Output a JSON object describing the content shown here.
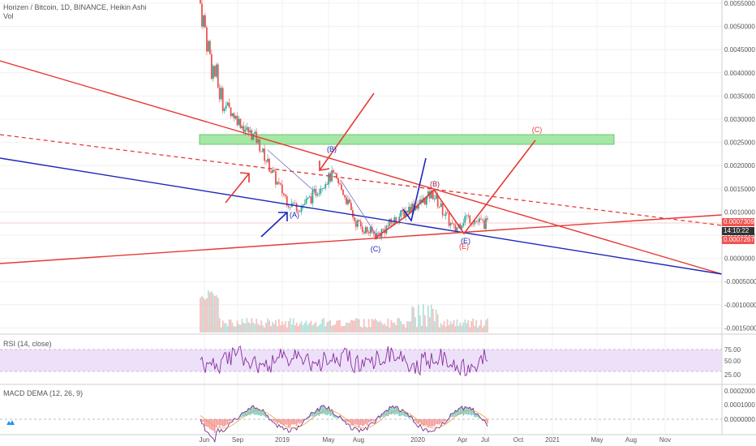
{
  "header": {
    "symbol_line": "Horizen / Bitcoin, 1D, BINANCE, Heikin Ashi",
    "vol_label": "Vol"
  },
  "colors": {
    "red_line": "#e53935",
    "blue_line": "#1a27b8",
    "green_zone": "#9ce69c",
    "candle_up": "#26a69a",
    "candle_down": "#ef5350",
    "rsi_line": "#8a2ea0",
    "rsi_band": "#e8d9f7",
    "macd_line": "#7b2d8e",
    "price_tag_top": "#ef5350",
    "price_tag_mid": "#333333",
    "price_tag_bot": "#ef5350"
  },
  "price_axis": {
    "ticks": [
      "0.0055000",
      "0.0050000",
      "0.0045000",
      "0.0040000",
      "0.0035000",
      "0.0030000",
      "0.0025000",
      "0.0020000",
      "0.0015000",
      "0.0010000",
      "0.0005000",
      "0.0000000",
      "-0.0005000",
      "-0.0010000",
      "-0.0015000"
    ],
    "current_price": "0.0007309",
    "countdown": "14:10:22",
    "low_price": "0.0007267"
  },
  "time_axis": {
    "labels": [
      "Jun",
      "Sep",
      "2019",
      "May",
      "Aug",
      "2020",
      "Apr",
      "Jul",
      "Oct",
      "2021",
      "May",
      "Aug",
      "Nov"
    ]
  },
  "wave_labels": [
    "(A)",
    "(B)",
    "(C)",
    "(B)",
    "(E)",
    "(E)",
    "(C)"
  ],
  "rsi": {
    "title": "RSI (14, close)",
    "ticks": [
      "75.00",
      "50.00",
      "25.00"
    ]
  },
  "macd": {
    "title": "MACD DEMA (12, 26, 9)",
    "ticks": [
      "0.0002000",
      "0.0001000",
      "0.0000000"
    ]
  },
  "chart_data": {
    "type": "line",
    "title": "Horizen / Bitcoin, 1D, BINANCE, Heikin Ashi",
    "x": [
      "2018-06",
      "2018-06",
      "2018-07",
      "2018-08",
      "2018-09",
      "2018-10",
      "2018-11",
      "2018-12",
      "2019-01",
      "2019-02",
      "2019-03",
      "2019-04",
      "2019-05",
      "2019-06",
      "2019-07",
      "2019-08",
      "2019-09",
      "2019-10",
      "2019-11",
      "2019-12",
      "2020-01",
      "2020-02",
      "2020-03",
      "2020-04",
      "2020-05",
      "2020-06",
      "2020-07"
    ],
    "series": [
      {
        "values": [
          0.0055,
          0.0042,
          0.0034,
          0.0031,
          0.0028,
          0.0026,
          0.0021,
          0.0016,
          0.0012,
          0.0011,
          0.0013,
          0.0016,
          0.0018,
          0.0014,
          0.0008,
          0.0006,
          0.0005,
          0.0007,
          0.0009,
          0.0011,
          0.0012,
          0.0014,
          0.001,
          0.0006,
          0.0009,
          0.0008,
          0.00073
        ]
      }
    ],
    "ylim": [
      -0.0017,
      0.0056
    ],
    "y_scale": "linear",
    "grid": true
  }
}
